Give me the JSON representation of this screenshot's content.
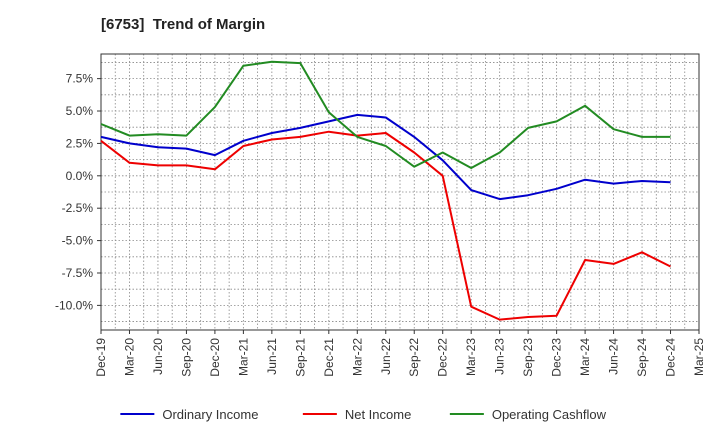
{
  "chart_data": {
    "type": "line",
    "title": "[6753]  Trend of Margin",
    "xlabel": "",
    "ylabel": "",
    "x": [
      "Dec-19",
      "Mar-20",
      "Jun-20",
      "Sep-20",
      "Dec-20",
      "Mar-21",
      "Jun-21",
      "Sep-21",
      "Dec-21",
      "Mar-22",
      "Jun-22",
      "Sep-22",
      "Dec-22",
      "Mar-23",
      "Jun-23",
      "Sep-23",
      "Dec-23",
      "Mar-24",
      "Jun-24",
      "Sep-24",
      "Dec-24"
    ],
    "x_ticks": [
      "Dec-19",
      "Mar-20",
      "Jun-20",
      "Sep-20",
      "Dec-20",
      "Mar-21",
      "Jun-21",
      "Sep-21",
      "Dec-21",
      "Mar-22",
      "Jun-22",
      "Sep-22",
      "Dec-22",
      "Mar-23",
      "Jun-23",
      "Sep-23",
      "Dec-23",
      "Mar-24",
      "Jun-24",
      "Sep-24",
      "Dec-24",
      "Mar-25"
    ],
    "y_ticks": [
      "7.5%",
      "5.0%",
      "2.5%",
      "0.0%",
      "-2.5%",
      "-5.0%",
      "-7.5%",
      "-10.0%"
    ],
    "y_tick_values": [
      7.5,
      5.0,
      2.5,
      0.0,
      -2.5,
      -5.0,
      -7.5,
      -10.0
    ],
    "ylim": [
      -11.9,
      9.4
    ],
    "grid": true,
    "legend_position": "bottom",
    "series": [
      {
        "name": "Ordinary Income",
        "color": "#0000cc",
        "values": [
          3.0,
          2.5,
          2.2,
          2.1,
          1.6,
          2.7,
          3.3,
          3.7,
          4.2,
          4.7,
          4.5,
          3.0,
          1.2,
          -1.1,
          -1.8,
          -1.5,
          -1.0,
          -0.3,
          -0.6,
          -0.4,
          -0.5
        ]
      },
      {
        "name": "Net Income",
        "color": "#ee0000",
        "values": [
          2.7,
          1.0,
          0.8,
          0.8,
          0.5,
          2.3,
          2.8,
          3.0,
          3.4,
          3.1,
          3.3,
          1.8,
          0.0,
          -10.1,
          -11.1,
          -10.9,
          -10.8,
          -6.5,
          -6.8,
          -5.9,
          -7.0
        ]
      },
      {
        "name": "Operating Cashflow",
        "color": "#228b22",
        "values": [
          4.0,
          3.1,
          3.2,
          3.1,
          5.3,
          8.5,
          8.8,
          8.7,
          4.9,
          3.0,
          2.3,
          0.7,
          1.8,
          0.6,
          1.8,
          3.7,
          4.2,
          5.4,
          3.6,
          3.0,
          3.0
        ]
      }
    ]
  }
}
